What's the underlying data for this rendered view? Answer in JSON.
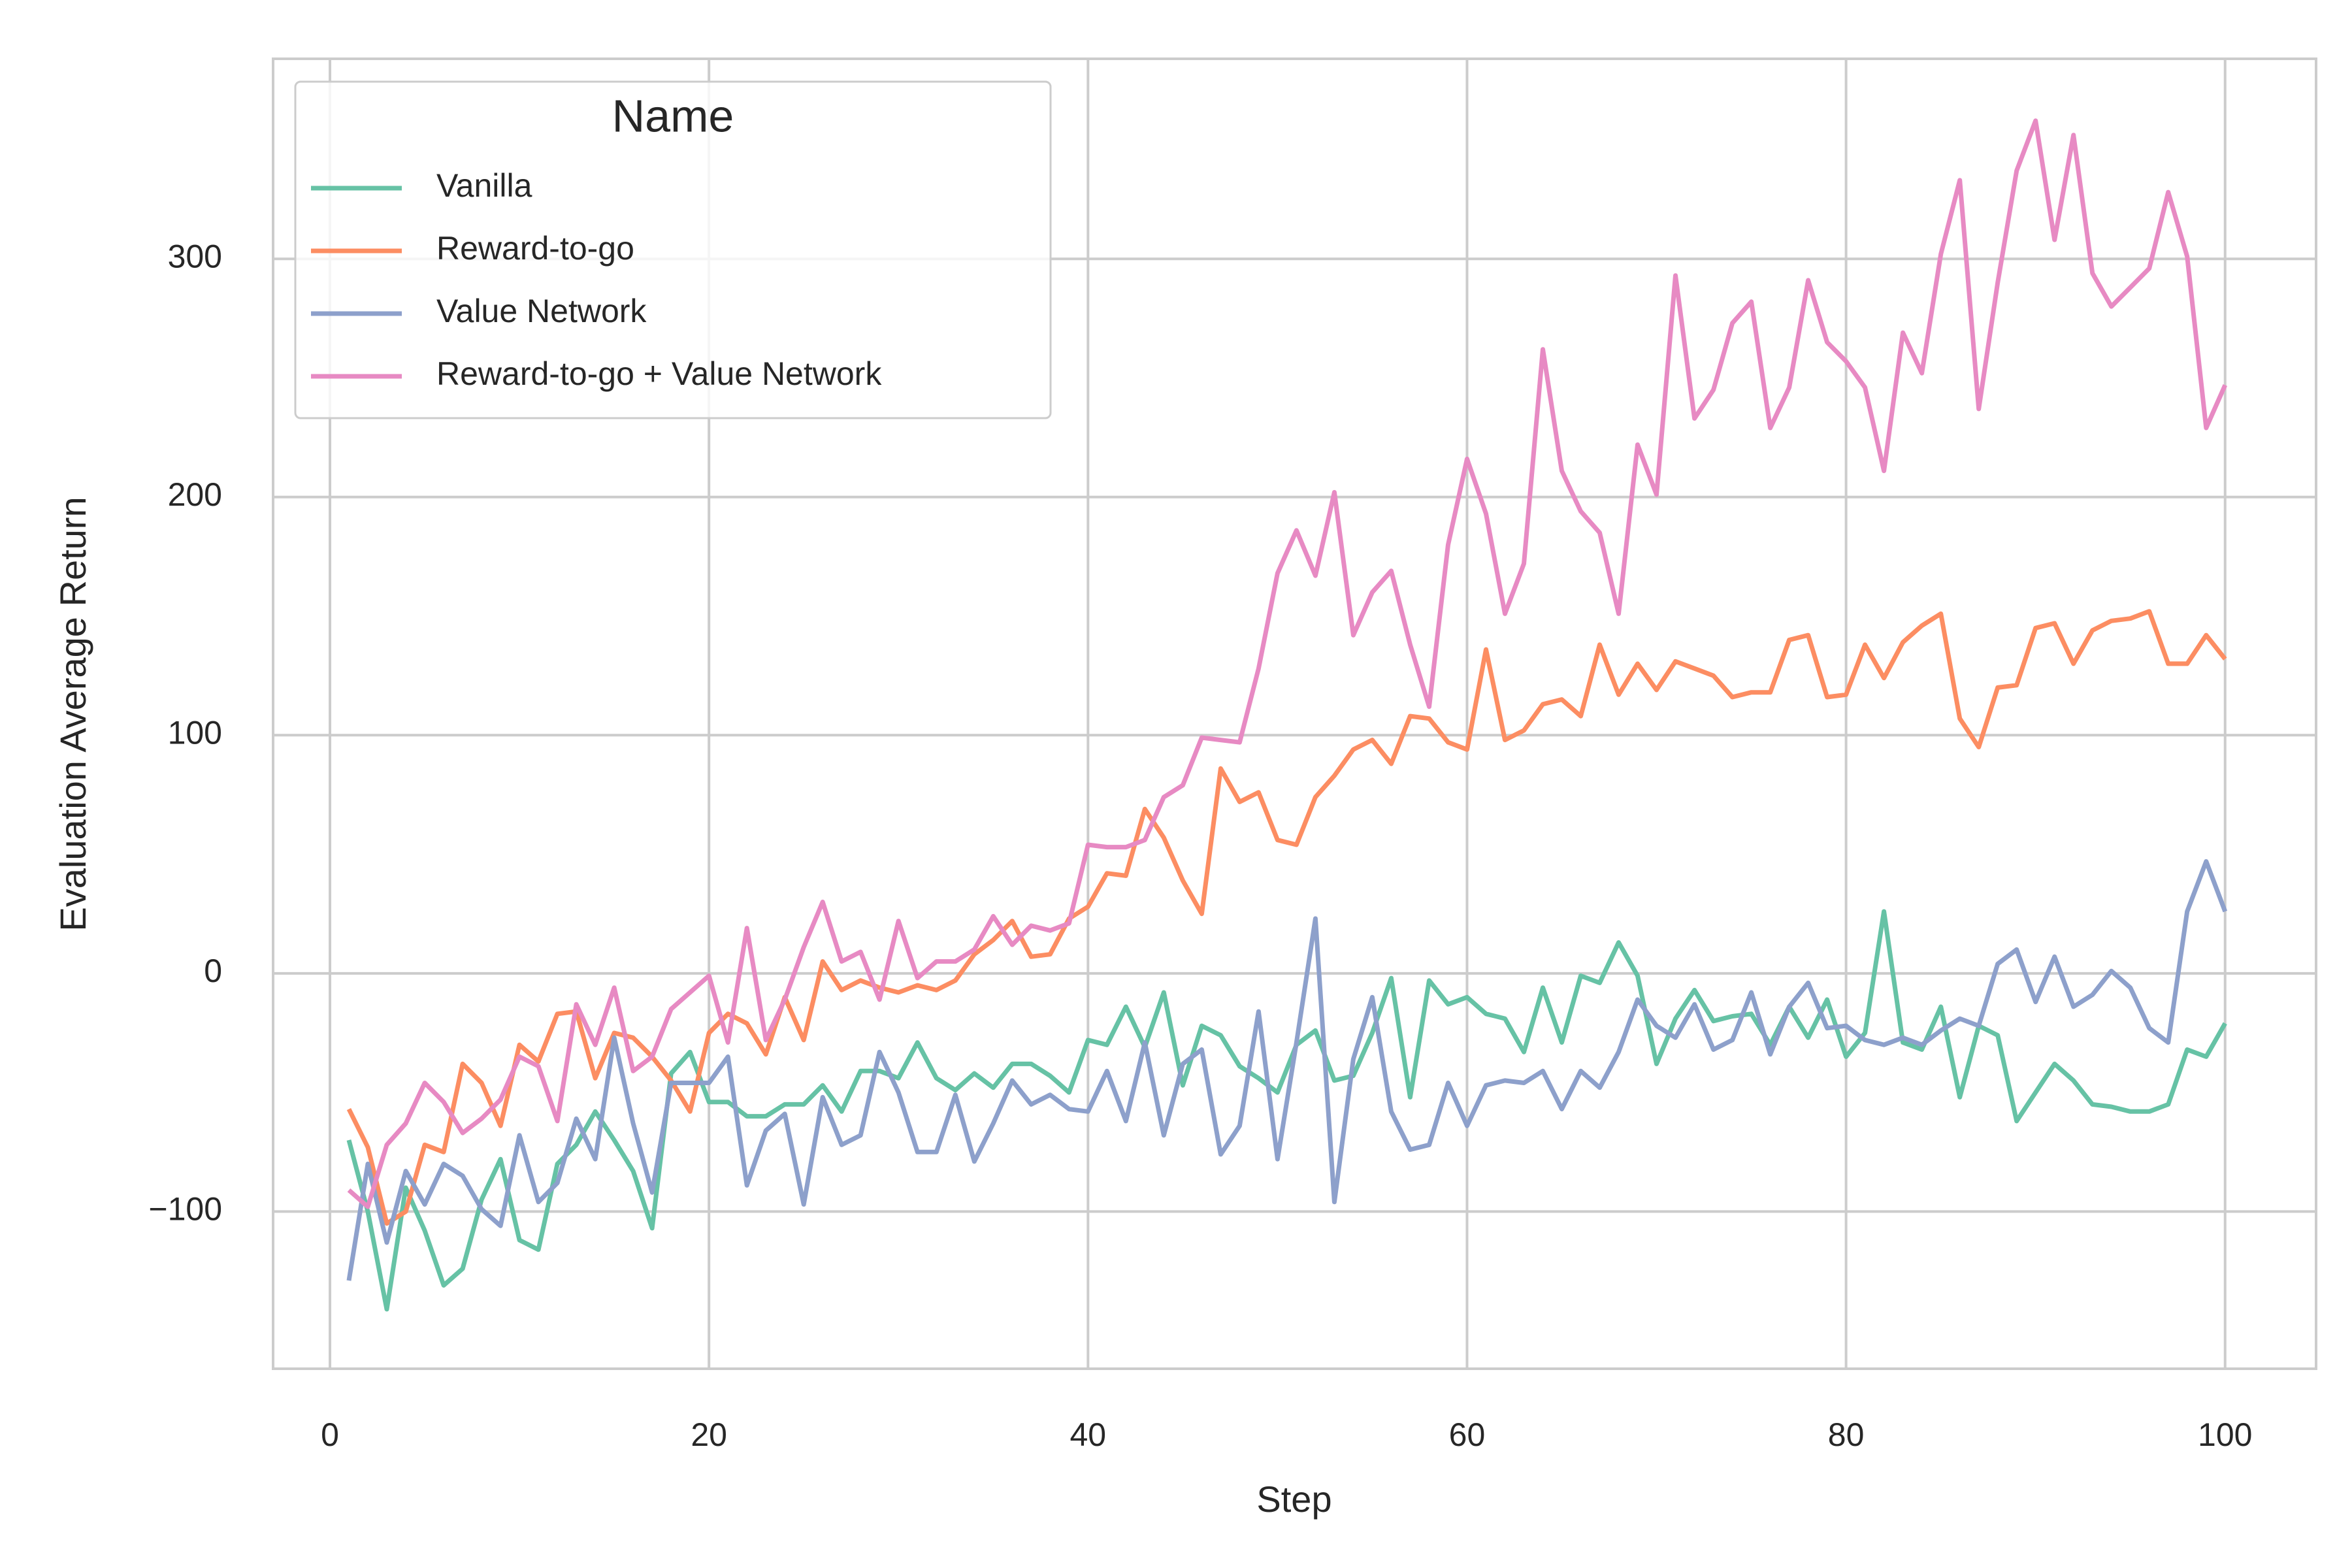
{
  "chart_data": {
    "type": "line",
    "xlabel": "Step",
    "ylabel": "Evaluation Average Return",
    "legend_title": "Name",
    "legend_loc": "upper left",
    "grid": true,
    "xlim": [
      -3,
      104.8
    ],
    "ylim": [
      -166,
      384
    ],
    "xticks": [
      0,
      20,
      40,
      60,
      80,
      100
    ],
    "yticks": [
      {
        "value": -100,
        "label": "−100"
      },
      0,
      100,
      200,
      300
    ],
    "x": [
      1,
      2,
      3,
      4,
      5,
      6,
      7,
      8,
      9,
      10,
      11,
      12,
      13,
      14,
      15,
      16,
      17,
      18,
      19,
      20,
      21,
      22,
      23,
      24,
      25,
      26,
      27,
      28,
      29,
      30,
      31,
      32,
      33,
      34,
      35,
      36,
      37,
      38,
      39,
      40,
      41,
      42,
      43,
      44,
      45,
      46,
      47,
      48,
      49,
      50,
      51,
      52,
      53,
      54,
      55,
      56,
      57,
      58,
      59,
      60,
      61,
      62,
      63,
      64,
      65,
      66,
      67,
      68,
      69,
      70,
      71,
      72,
      73,
      74,
      75,
      76,
      77,
      78,
      79,
      80,
      81,
      82,
      83,
      84,
      85,
      86,
      87,
      88,
      89,
      90,
      91,
      92,
      93,
      94,
      95,
      96,
      97,
      98,
      99,
      100
    ],
    "series": [
      {
        "name": "Vanilla",
        "color": "#66c2a5",
        "values": [
          -70,
          -100,
          -141,
          -90,
          -108,
          -131,
          -124,
          -95,
          -78,
          -112,
          -116,
          -80,
          -72,
          -58,
          -70,
          -83,
          -107,
          -42,
          -33,
          -54,
          -54,
          -60,
          -60,
          -55,
          -55,
          -47,
          -58,
          -41,
          -41,
          -44,
          -29,
          -44,
          -49,
          -42,
          -48,
          -38,
          -38,
          -43,
          -50,
          -28,
          -30,
          -14,
          -31,
          -8,
          -47,
          -22,
          -26,
          -39,
          -44,
          -50,
          -30,
          -24,
          -45,
          -43,
          -25,
          -2,
          -52,
          -3,
          -13,
          -10,
          -17,
          -19,
          -33,
          -6,
          -29,
          -1,
          -4,
          13,
          -1,
          -38,
          -19,
          -7,
          -20,
          -18,
          -17,
          -30,
          -14,
          -27,
          -11,
          -35,
          -25,
          26,
          -29,
          -32,
          -14,
          -52,
          -22,
          -26,
          -62,
          -50,
          -38,
          -45,
          -55,
          -56,
          -58,
          -58,
          -55,
          -32,
          -35,
          -21
        ]
      },
      {
        "name": "Reward-to-go",
        "color": "#fc8d62",
        "values": [
          -57,
          -73,
          -105,
          -100,
          -72,
          -75,
          -38,
          -46,
          -64,
          -30,
          -37,
          -17,
          -16,
          -44,
          -25,
          -27,
          -35,
          -45,
          -58,
          -25,
          -17,
          -21,
          -34,
          -10,
          -28,
          5,
          -7,
          -3,
          -6,
          -8,
          -5,
          -7,
          -3,
          8,
          14,
          22,
          7,
          8,
          23,
          28,
          42,
          41,
          69,
          57,
          39,
          25,
          86,
          72,
          76,
          56,
          54,
          74,
          83,
          94,
          98,
          88,
          108,
          107,
          97,
          94,
          136,
          98,
          102,
          113,
          115,
          108,
          138,
          117,
          130,
          119,
          131,
          128,
          125,
          116,
          118,
          118,
          140,
          142,
          116,
          117,
          138,
          124,
          139,
          146,
          151,
          107,
          95,
          120,
          121,
          145,
          147,
          130,
          144,
          148,
          149,
          152,
          130,
          130,
          142,
          132
        ]
      },
      {
        "name": "Value Network",
        "color": "#8da0cb",
        "values": [
          -129,
          -80,
          -113,
          -83,
          -97,
          -80,
          -85,
          -99,
          -106,
          -68,
          -96,
          -88,
          -61,
          -78,
          -27,
          -63,
          -92,
          -46,
          -46,
          -46,
          -35,
          -89,
          -66,
          -59,
          -97,
          -52,
          -72,
          -68,
          -33,
          -50,
          -75,
          -75,
          -51,
          -79,
          -63,
          -45,
          -55,
          -51,
          -57,
          -58,
          -41,
          -62,
          -29,
          -68,
          -38,
          -32,
          -76,
          -64,
          -16,
          -78,
          -29,
          23,
          -96,
          -36,
          -10,
          -58,
          -74,
          -72,
          -46,
          -64,
          -47,
          -45,
          -46,
          -41,
          -57,
          -41,
          -48,
          -33,
          -11,
          -22,
          -27,
          -13,
          -32,
          -28,
          -8,
          -34,
          -14,
          -4,
          -23,
          -22,
          -28,
          -30,
          -27,
          -30,
          -24,
          -19,
          -22,
          4,
          10,
          -12,
          7,
          -14,
          -9,
          1,
          -6,
          -23,
          -29,
          26,
          47,
          26
        ]
      },
      {
        "name": "Reward-to-go + Value Network",
        "color": "#e78ac3",
        "values": [
          -91,
          -98,
          -72,
          -63,
          -46,
          -54,
          -67,
          -61,
          -53,
          -35,
          -39,
          -62,
          -13,
          -30,
          -6,
          -41,
          -35,
          -15,
          -8,
          -1,
          -29,
          19,
          -28,
          -11,
          11,
          30,
          5,
          9,
          -11,
          22,
          -2,
          5,
          5,
          10,
          24,
          12,
          20,
          18,
          21,
          54,
          53,
          53,
          56,
          74,
          79,
          99,
          98,
          97,
          128,
          168,
          186,
          167,
          202,
          142,
          160,
          169,
          138,
          112,
          180,
          216,
          193,
          151,
          172,
          262,
          211,
          194,
          185,
          151,
          222,
          201,
          293,
          233,
          245,
          273,
          282,
          229,
          246,
          291,
          265,
          257,
          246,
          211,
          269,
          252,
          302,
          333,
          237,
          290,
          337,
          358,
          308,
          352,
          294,
          280,
          288,
          296,
          328,
          301,
          229,
          247
        ]
      }
    ]
  }
}
